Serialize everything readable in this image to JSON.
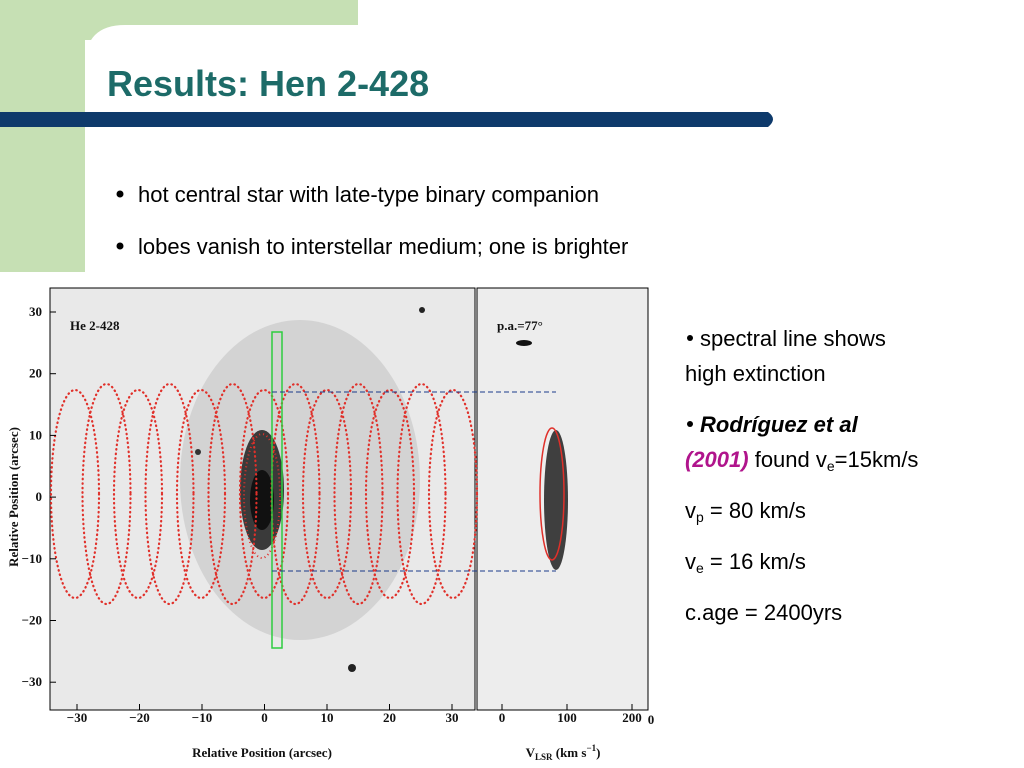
{
  "slide": {
    "title": "Results: Hen 2-428",
    "bullets": [
      "hot central star with late-type binary companion",
      "lobes vanish to interstellar medium; one is brighter"
    ],
    "figure": {
      "left_label": "He 2-428",
      "right_label": "p.a.=77°",
      "y_ticks": [
        "30",
        "20",
        "10",
        "0",
        "−10",
        "−20",
        "−30"
      ],
      "x_ticks_left": [
        "−30",
        "−20",
        "−10",
        "0",
        "10",
        "20",
        "30"
      ],
      "x_ticks_right": [
        "0",
        "100",
        "200"
      ],
      "edge_tick": "0",
      "y_axis_label": "Relative Position (arcsec)",
      "x_axis_label_left": "Relative Position (arcsec)",
      "x_axis_label_right": [
        "V",
        "LSR",
        " (km s",
        "−1",
        ")"
      ]
    },
    "notes": {
      "extinction": [
        "spectral line shows",
        "high extinction"
      ],
      "rodriguez": [
        "Rodríguez et al",
        "(2001)",
        " found v",
        "e",
        "=15km/s"
      ],
      "vp": [
        "v",
        "p",
        " = 80 km/s"
      ],
      "ve": [
        "v",
        "e",
        " = 16 km/s"
      ],
      "age": "c.age = 2400yrs"
    }
  }
}
